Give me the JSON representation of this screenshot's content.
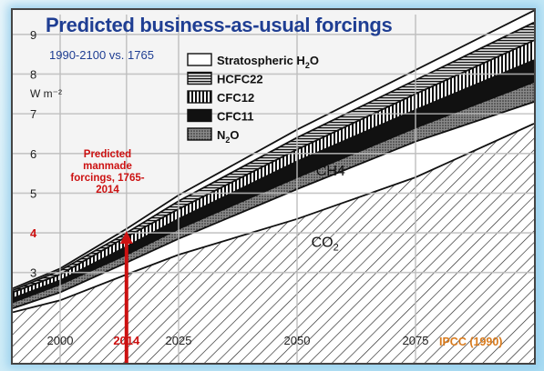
{
  "chart_data": {
    "type": "area",
    "title": "Predicted business-as-usual forcings",
    "subtitle": "1990-2100 vs. 1765",
    "ylabel": "W m⁻²",
    "xlim": [
      1990,
      2100
    ],
    "ylim": [
      1,
      9.5
    ],
    "x_ticks": [
      2000,
      2014,
      2025,
      2050,
      2075
    ],
    "x_tick_labels": [
      "2000",
      "2014",
      "2025",
      "2050",
      "2075"
    ],
    "y_ticks": [
      3,
      4,
      5,
      6,
      7,
      8,
      9
    ],
    "y_tick_labels": [
      "3",
      "4",
      "5",
      "6",
      "7",
      "8",
      "9"
    ],
    "grid": true,
    "legend_position": "top-left",
    "x": [
      1990,
      2000,
      2014,
      2025,
      2050,
      2075,
      2100
    ],
    "series": [
      {
        "name": "CO₂",
        "display_name": "CO2",
        "pattern": "diagonal-hatch",
        "cumulative": [
          2.0,
          2.3,
          2.95,
          3.45,
          4.35,
          5.4,
          6.75
        ]
      },
      {
        "name": "CH4",
        "display_name": "CH4",
        "pattern": "white",
        "cumulative": [
          2.1,
          2.5,
          3.25,
          3.85,
          5.1,
          6.3,
          7.3
        ]
      },
      {
        "name": "N₂O",
        "display_name": "N2O",
        "pattern": "dots",
        "cumulative": [
          2.25,
          2.7,
          3.45,
          4.1,
          5.4,
          6.65,
          7.8
        ]
      },
      {
        "name": "CFC11",
        "display_name": "CFC11",
        "pattern": "black",
        "cumulative": [
          2.35,
          2.8,
          3.65,
          4.35,
          5.8,
          7.1,
          8.35
        ]
      },
      {
        "name": "CFC12",
        "display_name": "CFC12",
        "pattern": "vertical-stripes",
        "cumulative": [
          2.5,
          2.95,
          3.9,
          4.6,
          6.1,
          7.5,
          8.85
        ]
      },
      {
        "name": "HCFC22",
        "display_name": "HCFC22",
        "pattern": "horizontal-hatch",
        "cumulative": [
          2.55,
          3.05,
          4.0,
          4.8,
          6.4,
          7.85,
          9.3
        ]
      },
      {
        "name": "Stratospheric H₂O",
        "display_name": "Stratospheric H2O",
        "pattern": "white",
        "cumulative": [
          2.6,
          3.1,
          4.1,
          4.95,
          6.6,
          8.1,
          9.6
        ]
      }
    ],
    "legend": [
      {
        "label": "Stratospheric H",
        "sub": "2",
        "after": "O",
        "pattern": "white"
      },
      {
        "label": "HCFC22",
        "sub": "",
        "after": "",
        "pattern": "horizontal-hatch"
      },
      {
        "label": "CFC12",
        "sub": "",
        "after": "",
        "pattern": "vertical-stripes"
      },
      {
        "label": "CFC11",
        "sub": "",
        "after": "",
        "pattern": "black"
      },
      {
        "label": "N",
        "sub": "2",
        "after": "O",
        "pattern": "dots"
      }
    ],
    "area_labels": [
      {
        "text": "CH4",
        "sub": "",
        "after": "",
        "x": 2054,
        "y": 5.45
      },
      {
        "text": "CO",
        "sub": "2",
        "after": "",
        "x": 2053,
        "y": 3.65
      }
    ],
    "highlight": {
      "year": 2014,
      "year_label": "2014",
      "value": 4,
      "value_label": "4",
      "color": "#cc1111"
    },
    "annotation": "Predicted manmade forcings, 1765-2014",
    "source": "IPCC (1990)",
    "colors": {
      "title": "#1f3e93",
      "axis_text": "#222222",
      "highlight": "#cc1111",
      "source": "#d87a1c",
      "grid": "#bdbdbd"
    }
  }
}
